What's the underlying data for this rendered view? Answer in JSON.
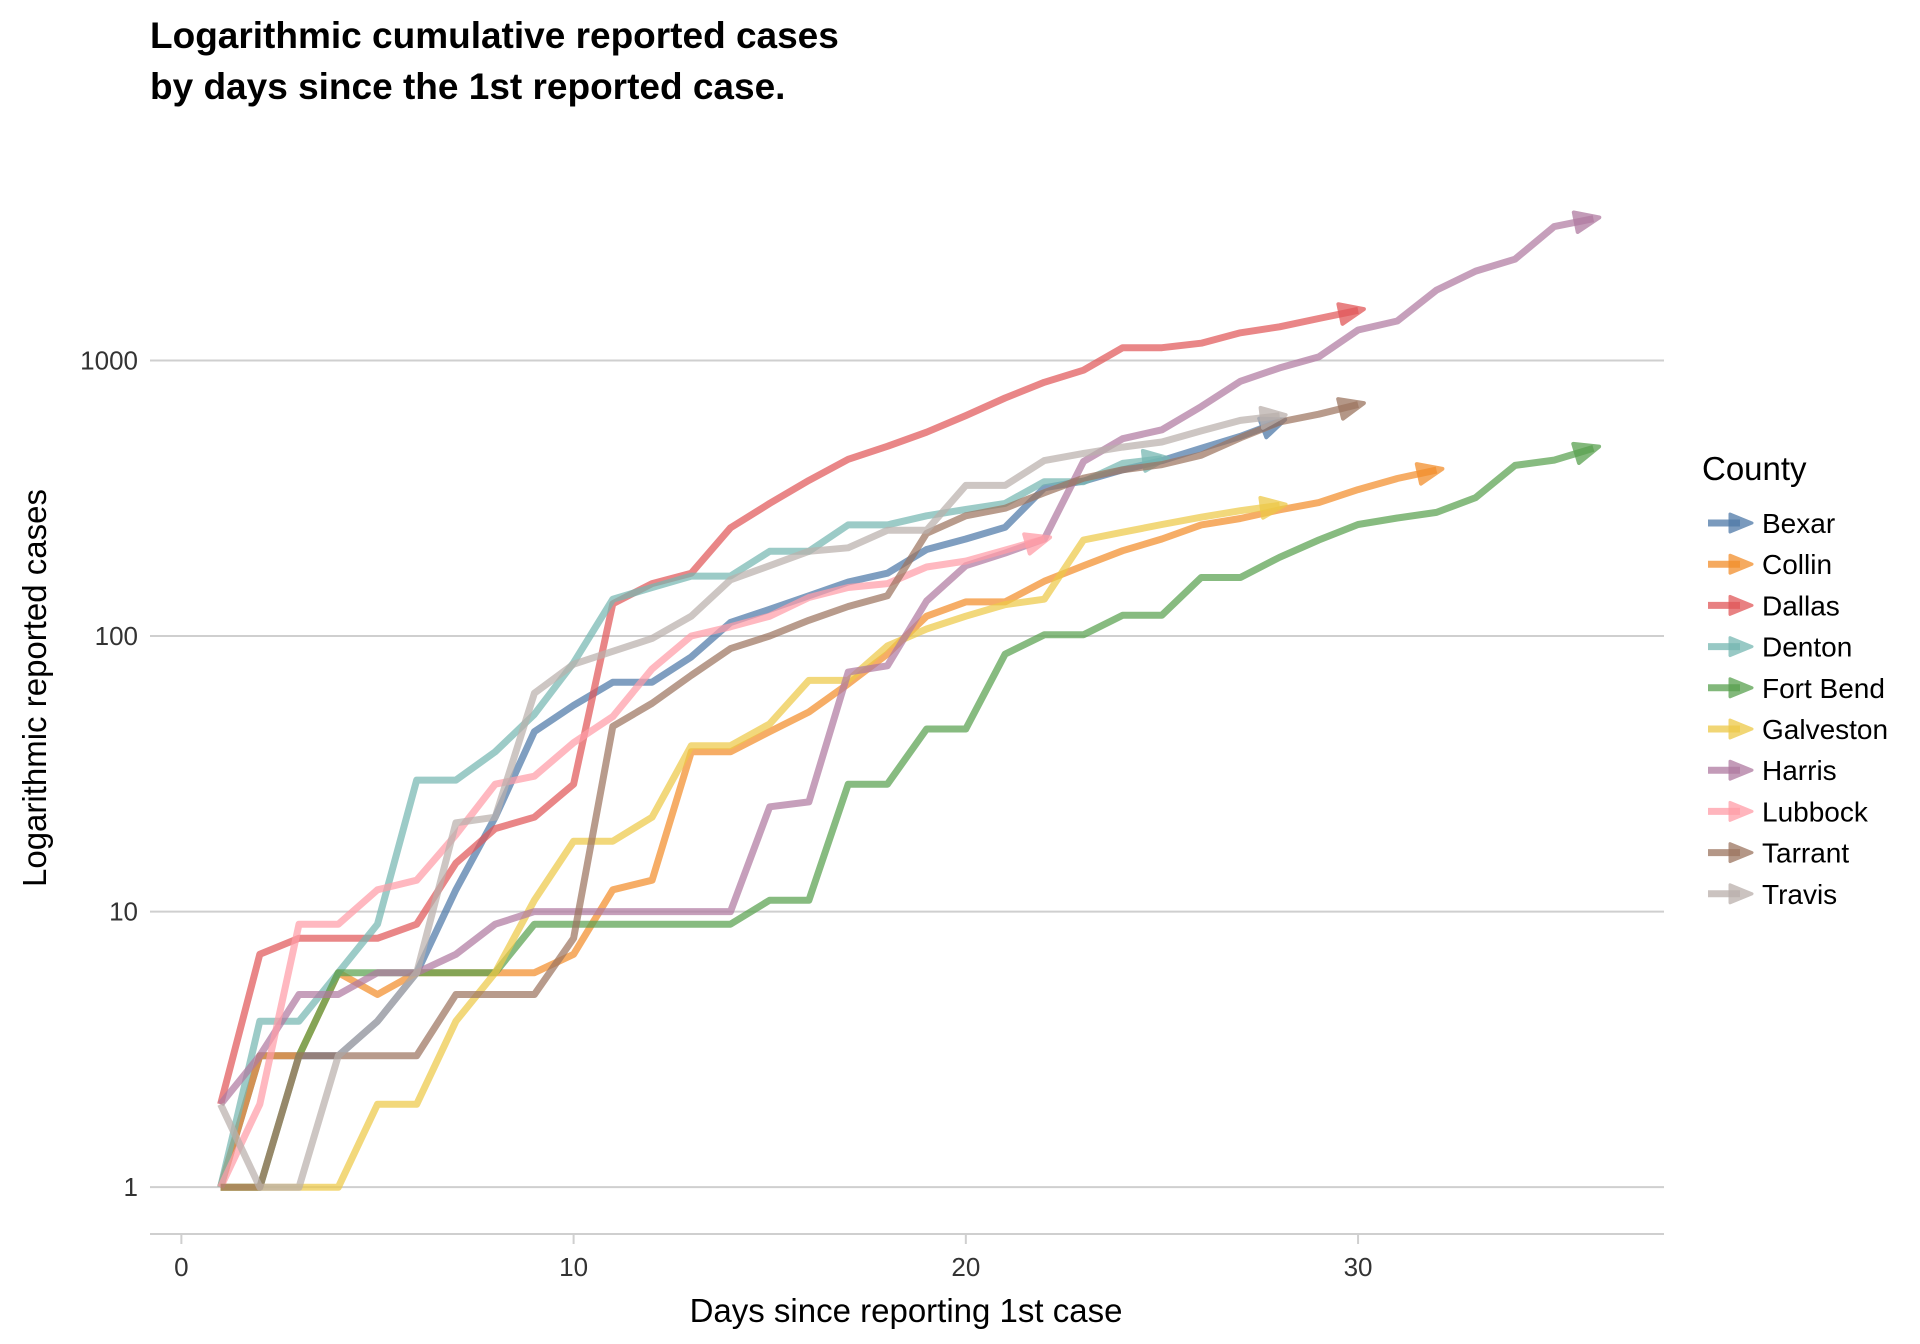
{
  "chart_data": {
    "type": "line",
    "title_lines": [
      "Logarithmic cumulative reported cases",
      "by days since the 1st reported case."
    ],
    "xlabel": "Days since reporting 1st case",
    "ylabel": "Logarithmic reported cases",
    "xlim": [
      -0.8,
      37.8
    ],
    "ylim_log10": [
      -0.17,
      3.8
    ],
    "y_scale": "log10",
    "x_ticks": [
      0,
      10,
      20,
      30
    ],
    "x_tick_labels": [
      "0",
      "10",
      "20",
      "30"
    ],
    "y_ticks": [
      1,
      10,
      100,
      1000
    ],
    "y_tick_labels": [
      "1",
      "10",
      "100",
      "1000"
    ],
    "grid": "horizontal major",
    "legend": {
      "title": "County",
      "position": "right"
    },
    "series": [
      {
        "name": "Bexar",
        "color": "#4e79a7",
        "points": [
          [
            1,
            1
          ],
          [
            2,
            3
          ],
          [
            3,
            3
          ],
          [
            4,
            3
          ],
          [
            5,
            4
          ],
          [
            6,
            6
          ],
          [
            7,
            12
          ],
          [
            8,
            22
          ],
          [
            9,
            45
          ],
          [
            10,
            56
          ],
          [
            11,
            68
          ],
          [
            12,
            68
          ],
          [
            13,
            84
          ],
          [
            14,
            112
          ],
          [
            15,
            125
          ],
          [
            16,
            140
          ],
          [
            17,
            157
          ],
          [
            18,
            169
          ],
          [
            19,
            206
          ],
          [
            20,
            225
          ],
          [
            21,
            248
          ],
          [
            22,
            345
          ],
          [
            23,
            365
          ],
          [
            24,
            401
          ],
          [
            25,
            433
          ],
          [
            26,
            480
          ],
          [
            27,
            530
          ],
          [
            28,
            600
          ]
        ]
      },
      {
        "name": "Collin",
        "color": "#f28e2b",
        "points": [
          [
            1,
            1
          ],
          [
            2,
            3
          ],
          [
            3,
            3
          ],
          [
            4,
            6
          ],
          [
            5,
            5
          ],
          [
            6,
            6
          ],
          [
            7,
            6
          ],
          [
            8,
            6
          ],
          [
            9,
            6
          ],
          [
            10,
            7
          ],
          [
            11,
            12
          ],
          [
            12,
            13
          ],
          [
            13,
            38
          ],
          [
            14,
            38
          ],
          [
            15,
            45
          ],
          [
            16,
            53
          ],
          [
            17,
            67
          ],
          [
            18,
            86
          ],
          [
            19,
            118
          ],
          [
            20,
            133
          ],
          [
            21,
            133
          ],
          [
            22,
            158
          ],
          [
            23,
            180
          ],
          [
            24,
            204
          ],
          [
            25,
            225
          ],
          [
            26,
            253
          ],
          [
            27,
            267
          ],
          [
            28,
            287
          ],
          [
            29,
            305
          ],
          [
            30,
            340
          ],
          [
            31,
            373
          ],
          [
            32,
            400
          ]
        ]
      },
      {
        "name": "Dallas",
        "color": "#e15759",
        "points": [
          [
            1,
            2
          ],
          [
            2,
            7
          ],
          [
            3,
            8
          ],
          [
            4,
            8
          ],
          [
            5,
            8
          ],
          [
            6,
            9
          ],
          [
            7,
            15
          ],
          [
            8,
            20
          ],
          [
            9,
            22
          ],
          [
            10,
            29
          ],
          [
            11,
            131
          ],
          [
            12,
            155
          ],
          [
            13,
            169
          ],
          [
            14,
            247
          ],
          [
            15,
            303
          ],
          [
            16,
            367
          ],
          [
            17,
            438
          ],
          [
            18,
            488
          ],
          [
            19,
            549
          ],
          [
            20,
            631
          ],
          [
            21,
            731
          ],
          [
            22,
            833
          ],
          [
            23,
            922
          ],
          [
            24,
            1112
          ],
          [
            25,
            1112
          ],
          [
            26,
            1155
          ],
          [
            27,
            1260
          ],
          [
            28,
            1325
          ],
          [
            29,
            1420
          ],
          [
            30,
            1520
          ]
        ]
      },
      {
        "name": "Denton",
        "color": "#76b7b2",
        "points": [
          [
            1,
            1
          ],
          [
            2,
            4
          ],
          [
            3,
            4
          ],
          [
            4,
            6
          ],
          [
            5,
            9
          ],
          [
            6,
            30
          ],
          [
            7,
            30
          ],
          [
            8,
            38
          ],
          [
            9,
            52
          ],
          [
            10,
            80
          ],
          [
            11,
            136
          ],
          [
            12,
            150
          ],
          [
            13,
            165
          ],
          [
            14,
            165
          ],
          [
            15,
            203
          ],
          [
            16,
            203
          ],
          [
            17,
            253
          ],
          [
            18,
            253
          ],
          [
            19,
            273
          ],
          [
            20,
            288
          ],
          [
            21,
            303
          ],
          [
            22,
            363
          ],
          [
            23,
            363
          ],
          [
            24,
            423
          ],
          [
            25,
            440
          ]
        ]
      },
      {
        "name": "Fort Bend",
        "color": "#59a14f",
        "points": [
          [
            1,
            1
          ],
          [
            2,
            1
          ],
          [
            3,
            3
          ],
          [
            4,
            6
          ],
          [
            5,
            6
          ],
          [
            6,
            6
          ],
          [
            7,
            6
          ],
          [
            8,
            6
          ],
          [
            9,
            9
          ],
          [
            10,
            9
          ],
          [
            11,
            9
          ],
          [
            12,
            9
          ],
          [
            13,
            9
          ],
          [
            14,
            9
          ],
          [
            15,
            11
          ],
          [
            16,
            11
          ],
          [
            17,
            29
          ],
          [
            18,
            29
          ],
          [
            19,
            46
          ],
          [
            20,
            46
          ],
          [
            21,
            86
          ],
          [
            22,
            101
          ],
          [
            23,
            101
          ],
          [
            24,
            119
          ],
          [
            25,
            119
          ],
          [
            26,
            163
          ],
          [
            27,
            163
          ],
          [
            28,
            193
          ],
          [
            29,
            223
          ],
          [
            30,
            254
          ],
          [
            31,
            268
          ],
          [
            32,
            281
          ],
          [
            33,
            318
          ],
          [
            34,
            416
          ],
          [
            35,
            435
          ],
          [
            36,
            480
          ]
        ]
      },
      {
        "name": "Galveston",
        "color": "#edc948",
        "points": [
          [
            1,
            1
          ],
          [
            2,
            1
          ],
          [
            3,
            1
          ],
          [
            4,
            1
          ],
          [
            5,
            2
          ],
          [
            6,
            2
          ],
          [
            7,
            4
          ],
          [
            8,
            6
          ],
          [
            9,
            11
          ],
          [
            10,
            18
          ],
          [
            11,
            18
          ],
          [
            12,
            22
          ],
          [
            13,
            40
          ],
          [
            14,
            40
          ],
          [
            15,
            48
          ],
          [
            16,
            69
          ],
          [
            17,
            69
          ],
          [
            18,
            92
          ],
          [
            19,
            106
          ],
          [
            20,
            118
          ],
          [
            21,
            130
          ],
          [
            22,
            136
          ],
          [
            23,
            223
          ],
          [
            24,
            238
          ],
          [
            25,
            254
          ],
          [
            26,
            270
          ],
          [
            27,
            285
          ],
          [
            28,
            298
          ]
        ]
      },
      {
        "name": "Harris",
        "color": "#b07aa1",
        "points": [
          [
            1,
            2
          ],
          [
            2,
            3
          ],
          [
            3,
            5
          ],
          [
            4,
            5
          ],
          [
            5,
            6
          ],
          [
            6,
            6
          ],
          [
            7,
            7
          ],
          [
            8,
            9
          ],
          [
            9,
            10
          ],
          [
            10,
            10
          ],
          [
            11,
            10
          ],
          [
            12,
            10
          ],
          [
            13,
            10
          ],
          [
            14,
            10
          ],
          [
            15,
            24
          ],
          [
            16,
            25
          ],
          [
            17,
            74
          ],
          [
            18,
            78
          ],
          [
            19,
            134
          ],
          [
            20,
            180
          ],
          [
            21,
            200
          ],
          [
            22,
            225
          ],
          [
            23,
            430
          ],
          [
            24,
            520
          ],
          [
            25,
            560
          ],
          [
            26,
            680
          ],
          [
            27,
            840
          ],
          [
            28,
            940
          ],
          [
            29,
            1030
          ],
          [
            30,
            1290
          ],
          [
            31,
            1390
          ],
          [
            32,
            1800
          ],
          [
            33,
            2110
          ],
          [
            34,
            2330
          ],
          [
            35,
            3060
          ],
          [
            36,
            3270
          ]
        ]
      },
      {
        "name": "Lubbock",
        "color": "#ff9da7",
        "points": [
          [
            1,
            1
          ],
          [
            2,
            2
          ],
          [
            3,
            9
          ],
          [
            4,
            9
          ],
          [
            5,
            12
          ],
          [
            6,
            13
          ],
          [
            7,
            19
          ],
          [
            8,
            29
          ],
          [
            9,
            31
          ],
          [
            10,
            41
          ],
          [
            11,
            51
          ],
          [
            12,
            76
          ],
          [
            13,
            100
          ],
          [
            14,
            108
          ],
          [
            15,
            118
          ],
          [
            16,
            138
          ],
          [
            17,
            150
          ],
          [
            18,
            155
          ],
          [
            19,
            178
          ],
          [
            20,
            187
          ],
          [
            21,
            205
          ],
          [
            22,
            225
          ]
        ]
      },
      {
        "name": "Tarrant",
        "color": "#9c755f",
        "points": [
          [
            1,
            1
          ],
          [
            2,
            1
          ],
          [
            3,
            3
          ],
          [
            4,
            3
          ],
          [
            5,
            3
          ],
          [
            6,
            3
          ],
          [
            7,
            5
          ],
          [
            8,
            5
          ],
          [
            9,
            5
          ],
          [
            10,
            8
          ],
          [
            11,
            47
          ],
          [
            12,
            57
          ],
          [
            13,
            72
          ],
          [
            14,
            90
          ],
          [
            15,
            100
          ],
          [
            16,
            114
          ],
          [
            17,
            128
          ],
          [
            18,
            140
          ],
          [
            19,
            236
          ],
          [
            20,
            273
          ],
          [
            21,
            291
          ],
          [
            22,
            331
          ],
          [
            23,
            374
          ],
          [
            24,
            401
          ],
          [
            25,
            419
          ],
          [
            26,
            453
          ],
          [
            27,
            524
          ],
          [
            28,
            598
          ],
          [
            29,
            638
          ],
          [
            30,
            692
          ]
        ]
      },
      {
        "name": "Travis",
        "color": "#bab0ac",
        "points": [
          [
            1,
            2
          ],
          [
            2,
            1
          ],
          [
            3,
            1
          ],
          [
            4,
            3
          ],
          [
            5,
            4
          ],
          [
            6,
            6
          ],
          [
            7,
            21
          ],
          [
            8,
            22
          ],
          [
            9,
            62
          ],
          [
            10,
            79
          ],
          [
            11,
            88
          ],
          [
            12,
            98
          ],
          [
            13,
            118
          ],
          [
            14,
            160
          ],
          [
            15,
            180
          ],
          [
            16,
            203
          ],
          [
            17,
            209
          ],
          [
            18,
            242
          ],
          [
            19,
            242
          ],
          [
            20,
            352
          ],
          [
            21,
            352
          ],
          [
            22,
            433
          ],
          [
            23,
            460
          ],
          [
            24,
            485
          ],
          [
            25,
            506
          ],
          [
            26,
            555
          ],
          [
            27,
            606
          ],
          [
            28,
            630
          ]
        ]
      }
    ]
  }
}
